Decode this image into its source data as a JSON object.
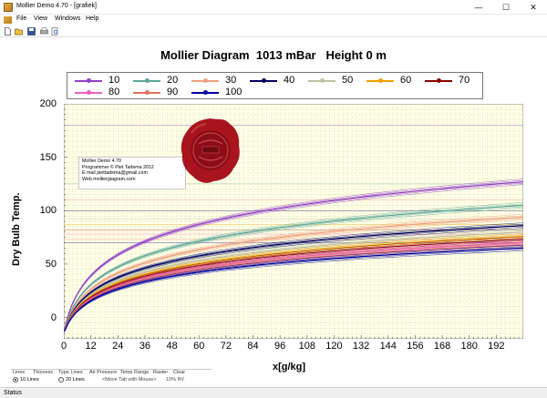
{
  "window": {
    "title": "Mollier Demo 4.70 - [grafiek]",
    "icon": "app-icon",
    "controls": [
      "—",
      "☐",
      "✕"
    ]
  },
  "menu": [
    "File",
    "View",
    "Windows",
    "Help"
  ],
  "toolbar": [
    "new-icon",
    "open-icon",
    "save-icon",
    "print-icon",
    "print-preview-icon"
  ],
  "chart_data": {
    "type": "line",
    "title": "Mollier Diagram  1013 mBar   Height 0 m",
    "xlabel": "x[g/kg]",
    "ylabel": "Dry Bulb Temp.",
    "xlim": [
      0,
      204
    ],
    "ylim": [
      -20,
      200
    ],
    "x_ticks": [
      0,
      12,
      24,
      36,
      48,
      60,
      72,
      84,
      96,
      108,
      120,
      132,
      144,
      156,
      168,
      180,
      192
    ],
    "y_ticks": [
      0,
      50,
      100,
      150,
      200
    ],
    "legend_position": "top",
    "background": "#ffffe6",
    "grid": true,
    "series": [
      {
        "name": "10",
        "color": "#9040c8",
        "end_temp": 127
      },
      {
        "name": "20",
        "color": "#5ea89a",
        "end_temp": 105
      },
      {
        "name": "30",
        "color": "#f0a080",
        "end_temp": 94
      },
      {
        "name": "40",
        "color": "#000060",
        "end_temp": 86
      },
      {
        "name": "50",
        "color": "#c0c0a0",
        "end_temp": 80
      },
      {
        "name": "60",
        "color": "#f0a000",
        "end_temp": 76
      },
      {
        "name": "70",
        "color": "#8b0000",
        "end_temp": 73
      },
      {
        "name": "80",
        "color": "#f060c0",
        "end_temp": 70
      },
      {
        "name": "90",
        "color": "#e07060",
        "end_temp": 68
      },
      {
        "name": "100",
        "color": "#0000a0",
        "end_temp": 65
      }
    ]
  },
  "infobox": {
    "lines": [
      "Mollier Demo 4.70",
      "Programmer © Piet Tadema 2012",
      "E mail piettadema@gmail.com",
      "Web molliergiagram.com"
    ]
  },
  "seal": {
    "icon": "wax-seal-icon"
  },
  "tabs": [
    "Lines",
    "Thicness",
    "Type Lines",
    "Air Pressure",
    "Temp Range",
    "Raster",
    "Clear"
  ],
  "radios": [
    {
      "label": "10 Lines",
      "checked": true
    },
    {
      "label": "20 Lines",
      "checked": false
    }
  ],
  "hints": [
    "<Move Tab with Mouse>",
    "10% RV"
  ],
  "status": "Status"
}
